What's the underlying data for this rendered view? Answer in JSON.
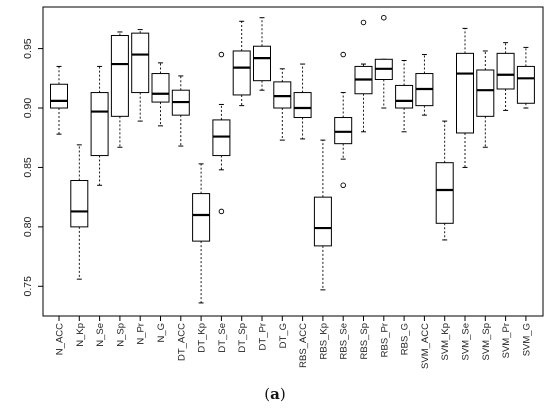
{
  "caption": {
    "open": "(",
    "letter": "a",
    "close": ")"
  },
  "chart_data": {
    "type": "box",
    "title": "",
    "xlabel": "",
    "ylabel": "",
    "ylim": [
      0.725,
      0.985
    ],
    "yticks": [
      0.75,
      0.8,
      0.85,
      0.9,
      0.95
    ],
    "ytick_labels": [
      "0.75",
      "0.80",
      "0.85",
      "0.90",
      "0.95"
    ],
    "grid": false,
    "boxes": [
      {
        "label": "N_ACC",
        "min": 0.878,
        "q1": 0.9,
        "median": 0.906,
        "q3": 0.92,
        "max": 0.935,
        "outliers": []
      },
      {
        "label": "N_Kp",
        "min": 0.756,
        "q1": 0.8,
        "median": 0.813,
        "q3": 0.839,
        "max": 0.869,
        "outliers": []
      },
      {
        "label": "N_Se",
        "min": 0.835,
        "q1": 0.86,
        "median": 0.897,
        "q3": 0.913,
        "max": 0.935,
        "outliers": []
      },
      {
        "label": "N_Sp",
        "min": 0.867,
        "q1": 0.893,
        "median": 0.937,
        "q3": 0.961,
        "max": 0.964,
        "outliers": []
      },
      {
        "label": "N_Pr",
        "min": 0.889,
        "q1": 0.913,
        "median": 0.945,
        "q3": 0.963,
        "max": 0.966,
        "outliers": []
      },
      {
        "label": "N_G",
        "min": 0.885,
        "q1": 0.905,
        "median": 0.912,
        "q3": 0.929,
        "max": 0.938,
        "outliers": []
      },
      {
        "label": "DT_ACC",
        "min": 0.868,
        "q1": 0.894,
        "median": 0.905,
        "q3": 0.915,
        "max": 0.927,
        "outliers": []
      },
      {
        "label": "DT_Kp",
        "min": 0.736,
        "q1": 0.788,
        "median": 0.81,
        "q3": 0.828,
        "max": 0.853,
        "outliers": []
      },
      {
        "label": "DT_Se",
        "min": 0.848,
        "q1": 0.86,
        "median": 0.876,
        "q3": 0.89,
        "max": 0.903,
        "outliers": [
          0.813,
          0.945
        ]
      },
      {
        "label": "DT_Sp",
        "min": 0.902,
        "q1": 0.911,
        "median": 0.934,
        "q3": 0.948,
        "max": 0.973,
        "outliers": []
      },
      {
        "label": "DT_Pr",
        "min": 0.915,
        "q1": 0.923,
        "median": 0.942,
        "q3": 0.952,
        "max": 0.976,
        "outliers": []
      },
      {
        "label": "DT_G",
        "min": 0.873,
        "q1": 0.9,
        "median": 0.91,
        "q3": 0.922,
        "max": 0.933,
        "outliers": []
      },
      {
        "label": "RBS_ACC",
        "min": 0.874,
        "q1": 0.892,
        "median": 0.9,
        "q3": 0.913,
        "max": 0.937,
        "outliers": []
      },
      {
        "label": "RBS_Kp",
        "min": 0.747,
        "q1": 0.784,
        "median": 0.799,
        "q3": 0.825,
        "max": 0.873,
        "outliers": []
      },
      {
        "label": "RBS_Se",
        "min": 0.857,
        "q1": 0.87,
        "median": 0.88,
        "q3": 0.892,
        "max": 0.913,
        "outliers": [
          0.835,
          0.945
        ]
      },
      {
        "label": "RBS_Sp",
        "min": 0.88,
        "q1": 0.912,
        "median": 0.924,
        "q3": 0.935,
        "max": 0.937,
        "outliers": [
          0.972
        ]
      },
      {
        "label": "RBS_Pr",
        "min": 0.9,
        "q1": 0.924,
        "median": 0.933,
        "q3": 0.941,
        "max": 0.941,
        "outliers": [
          0.976
        ]
      },
      {
        "label": "RBS_G",
        "min": 0.88,
        "q1": 0.9,
        "median": 0.906,
        "q3": 0.919,
        "max": 0.94,
        "outliers": []
      },
      {
        "label": "SVM_ACC",
        "min": 0.894,
        "q1": 0.902,
        "median": 0.916,
        "q3": 0.929,
        "max": 0.945,
        "outliers": []
      },
      {
        "label": "SVM_Kp",
        "min": 0.789,
        "q1": 0.803,
        "median": 0.831,
        "q3": 0.854,
        "max": 0.889,
        "outliers": []
      },
      {
        "label": "SVM_Se",
        "min": 0.85,
        "q1": 0.879,
        "median": 0.929,
        "q3": 0.946,
        "max": 0.967,
        "outliers": []
      },
      {
        "label": "SVM_Sp",
        "min": 0.867,
        "q1": 0.893,
        "median": 0.915,
        "q3": 0.932,
        "max": 0.948,
        "outliers": []
      },
      {
        "label": "SVM_Pr",
        "min": 0.898,
        "q1": 0.916,
        "median": 0.928,
        "q3": 0.946,
        "max": 0.955,
        "outliers": []
      },
      {
        "label": "SVM_G",
        "min": 0.9,
        "q1": 0.904,
        "median": 0.925,
        "q3": 0.935,
        "max": 0.951,
        "outliers": []
      }
    ]
  }
}
